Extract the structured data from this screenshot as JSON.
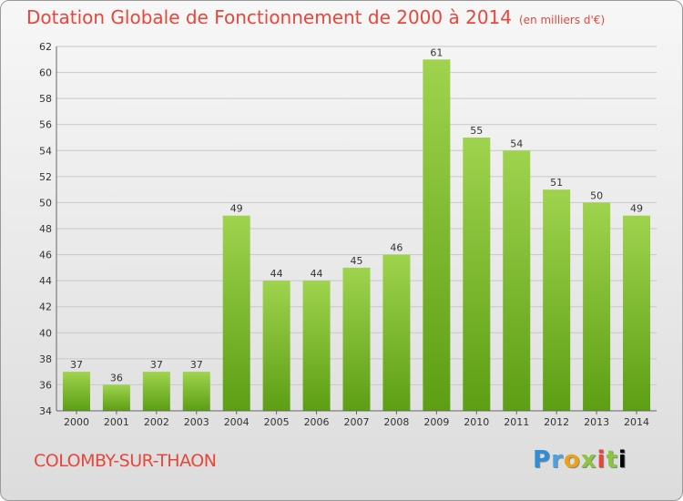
{
  "header": {
    "title": "Dotation Globale de Fonctionnement de 2000 à 2014",
    "subtitle": "(en milliers d'€)"
  },
  "footer": {
    "commune": "COLOMBY-SUR-THAON",
    "logo_letters": [
      "P",
      "r",
      "o",
      "x",
      "i",
      "t",
      "i"
    ]
  },
  "colors": {
    "bar_light": "#9fd34e",
    "bar_dark": "#5c9e14",
    "accent": "#e8463a"
  },
  "chart_data": {
    "type": "bar",
    "title": "Dotation Globale de Fonctionnement de 2000 à 2014",
    "subtitle": "(en milliers d'€)",
    "categories": [
      "2000",
      "2001",
      "2002",
      "2003",
      "2004",
      "2005",
      "2006",
      "2007",
      "2008",
      "2009",
      "2010",
      "2011",
      "2012",
      "2013",
      "2014"
    ],
    "values": [
      37,
      36,
      37,
      37,
      49,
      44,
      44,
      45,
      46,
      61,
      55,
      54,
      51,
      50,
      49
    ],
    "ylim": [
      34,
      62
    ],
    "yticks": [
      34,
      36,
      38,
      40,
      42,
      44,
      46,
      48,
      50,
      52,
      54,
      56,
      58,
      60,
      62
    ],
    "grid": true,
    "data_labels": true
  }
}
